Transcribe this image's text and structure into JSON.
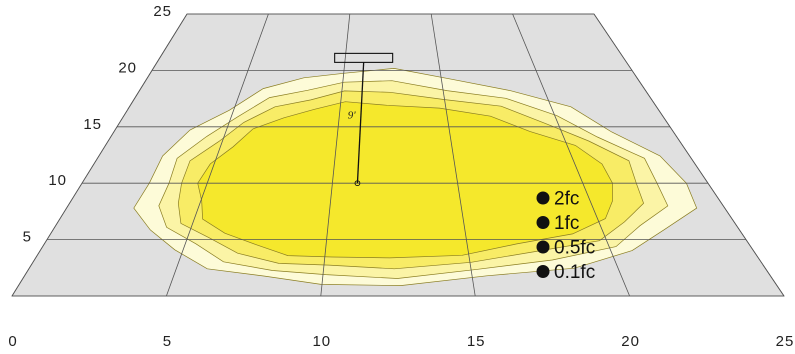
{
  "chart_data": {
    "type": "isoline-contour",
    "title": "",
    "xlabel": "",
    "ylabel": "",
    "x_ticks": [
      "0",
      "5",
      "10",
      "15",
      "20",
      "25"
    ],
    "y_ticks": [
      "5",
      "10",
      "15",
      "20",
      "25"
    ],
    "xlim": [
      0,
      25
    ],
    "ylim": [
      0,
      25
    ],
    "grid": true,
    "legend_placement": "right-bottom",
    "fixture": {
      "x": 11,
      "y": 20.8,
      "mount_height_label": "9'"
    },
    "pole_base": {
      "x": 11,
      "y": 10
    },
    "contours": [
      {
        "label": "0.1fc",
        "color": "#fdfbd8",
        "rx": [
          13.0,
          8.5
        ],
        "ry": [
          10.0,
          9.0
        ]
      },
      {
        "label": "0.5fc",
        "color": "#fbf4a6",
        "rx": [
          12.1,
          7.7
        ],
        "ry": [
          9.0,
          8.3
        ]
      },
      {
        "label": "1fc",
        "color": "#f8ec66",
        "rx": [
          11.4,
          7.1
        ],
        "ry": [
          8.1,
          7.5
        ]
      },
      {
        "label": "2fc",
        "color": "#f5e82c",
        "rx": [
          10.4,
          6.3
        ],
        "ry": [
          7.1,
          6.7
        ]
      }
    ],
    "legend": [
      "2fc",
      "1fc",
      "0.5fc",
      "0.1fc"
    ],
    "colors": {
      "floor": "#e0e0e0",
      "grid": "#555555",
      "outline": "#8a7d22"
    }
  }
}
